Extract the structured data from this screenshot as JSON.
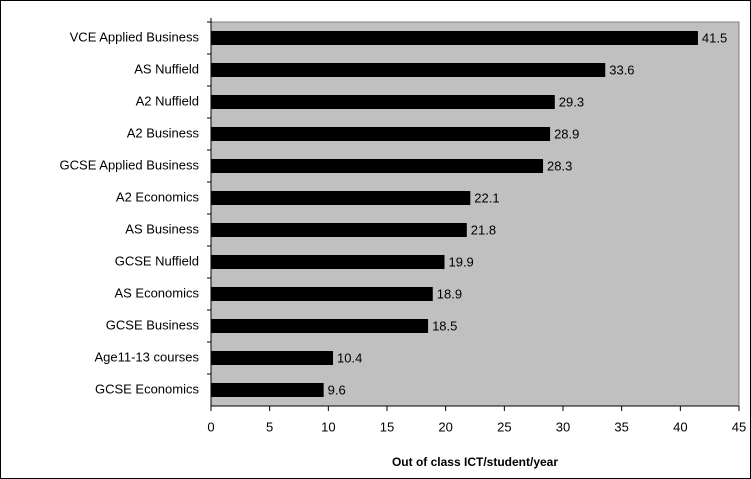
{
  "chart_data": {
    "type": "bar",
    "orientation": "horizontal",
    "categories": [
      "VCE Applied Business",
      "AS Nuffield",
      "A2 Nuffield",
      "A2 Business",
      "GCSE Applied Business",
      "A2 Economics",
      "AS Business",
      "GCSE Nuffield",
      "AS Economics",
      "GCSE Business",
      "Age11-13 courses",
      "GCSE Economics"
    ],
    "values": [
      41.5,
      33.6,
      29.3,
      28.9,
      28.3,
      22.1,
      21.8,
      19.9,
      18.9,
      18.5,
      10.4,
      9.6
    ],
    "color": "#000000",
    "plot_background": "#c0c0c0",
    "xlabel": "Out of class ICT/student/year",
    "xlim": [
      0,
      45
    ],
    "xticks": [
      0,
      5,
      10,
      15,
      20,
      25,
      30,
      35,
      40,
      45
    ],
    "grid": false
  }
}
